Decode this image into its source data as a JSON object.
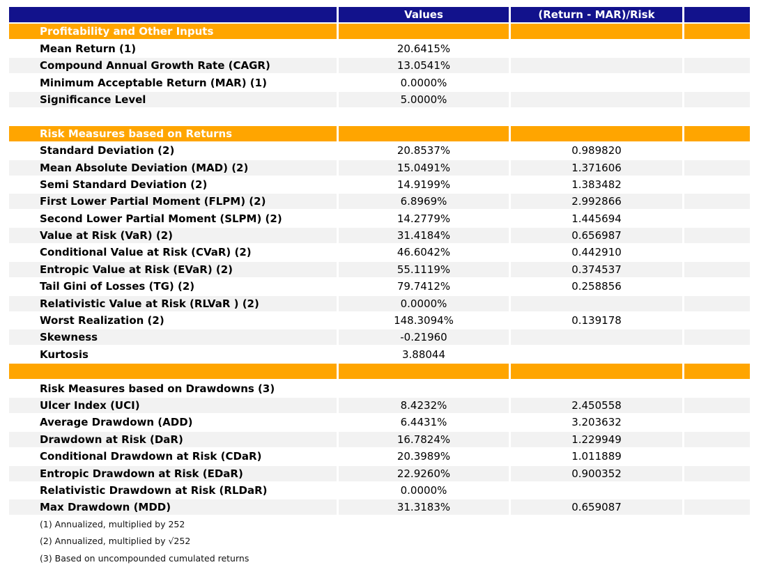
{
  "colors": {
    "header_bg": "#12128C",
    "section_bg": "#FFA500",
    "stripe_bg": "#F2F2F2",
    "text": "#000000"
  },
  "chart_data": {
    "type": "table",
    "title": "",
    "columns": [
      "",
      "Values",
      "(Return - MAR)/Risk",
      ""
    ],
    "rows": [
      {
        "type": "section",
        "label": "Profitability and Other Inputs",
        "value": "",
        "ratio": ""
      },
      {
        "type": "data",
        "shade": false,
        "label": "Mean Return (1)",
        "value": "20.6415%",
        "ratio": ""
      },
      {
        "type": "data",
        "shade": true,
        "label": "Compound Annual Growth Rate (CAGR)",
        "value": "13.0541%",
        "ratio": ""
      },
      {
        "type": "data",
        "shade": false,
        "label": "Minimum Acceptable Return (MAR) (1)",
        "value": "0.0000%",
        "ratio": ""
      },
      {
        "type": "data",
        "shade": true,
        "label": "Significance Level",
        "value": "5.0000%",
        "ratio": ""
      },
      {
        "type": "spacer",
        "label": "",
        "value": "",
        "ratio": ""
      },
      {
        "type": "section",
        "label": "Risk Measures based on Returns",
        "value": "",
        "ratio": ""
      },
      {
        "type": "data",
        "shade": false,
        "label": "Standard Deviation (2)",
        "value": "20.8537%",
        "ratio": "0.989820"
      },
      {
        "type": "data",
        "shade": true,
        "label": "Mean Absolute Deviation (MAD) (2)",
        "value": "15.0491%",
        "ratio": "1.371606"
      },
      {
        "type": "data",
        "shade": false,
        "label": "Semi Standard Deviation (2)",
        "value": "14.9199%",
        "ratio": "1.383482"
      },
      {
        "type": "data",
        "shade": true,
        "label": "First Lower Partial Moment (FLPM) (2)",
        "value": "6.8969%",
        "ratio": "2.992866"
      },
      {
        "type": "data",
        "shade": false,
        "label": "Second Lower Partial Moment (SLPM) (2)",
        "value": "14.2779%",
        "ratio": "1.445694"
      },
      {
        "type": "data",
        "shade": true,
        "label": "Value at Risk (VaR) (2)",
        "value": "31.4184%",
        "ratio": "0.656987"
      },
      {
        "type": "data",
        "shade": false,
        "label": "Conditional Value at Risk (CVaR) (2)",
        "value": "46.6042%",
        "ratio": "0.442910"
      },
      {
        "type": "data",
        "shade": true,
        "label": "Entropic Value at Risk (EVaR) (2)",
        "value": "55.1119%",
        "ratio": "0.374537"
      },
      {
        "type": "data",
        "shade": false,
        "label": "Tail Gini of Losses (TG) (2)",
        "value": "79.7412%",
        "ratio": "0.258856"
      },
      {
        "type": "data",
        "shade": true,
        "label": "Relativistic Value at Risk (RLVaR ) (2)",
        "value": "0.0000%",
        "ratio": ""
      },
      {
        "type": "data",
        "shade": false,
        "label": "Worst Realization (2)",
        "value": "148.3094%",
        "ratio": "0.139178"
      },
      {
        "type": "data",
        "shade": true,
        "label": "Skewness",
        "value": "-0.21960",
        "ratio": ""
      },
      {
        "type": "data",
        "shade": false,
        "label": "Kurtosis",
        "value": "3.88044",
        "ratio": ""
      },
      {
        "type": "section",
        "label": "",
        "value": "",
        "ratio": ""
      },
      {
        "type": "data",
        "shade": false,
        "label": "Risk Measures based on Drawdowns (3)",
        "value": "",
        "ratio": ""
      },
      {
        "type": "data",
        "shade": true,
        "label": "Ulcer Index (UCI)",
        "value": "8.4232%",
        "ratio": "2.450558"
      },
      {
        "type": "data",
        "shade": false,
        "label": "Average Drawdown (ADD)",
        "value": "6.4431%",
        "ratio": "3.203632"
      },
      {
        "type": "data",
        "shade": true,
        "label": "Drawdown at Risk (DaR)",
        "value": "16.7824%",
        "ratio": "1.229949"
      },
      {
        "type": "data",
        "shade": false,
        "label": "Conditional Drawdown at Risk (CDaR)",
        "value": "20.3989%",
        "ratio": "1.011889"
      },
      {
        "type": "data",
        "shade": true,
        "label": "Entropic Drawdown at Risk (EDaR)",
        "value": "22.9260%",
        "ratio": "0.900352"
      },
      {
        "type": "data",
        "shade": false,
        "label": "Relativistic Drawdown at Risk (RLDaR)",
        "value": "0.0000%",
        "ratio": ""
      },
      {
        "type": "data",
        "shade": true,
        "label": "Max Drawdown (MDD)",
        "value": "31.3183%",
        "ratio": "0.659087"
      },
      {
        "type": "footnote",
        "label": "(1) Annualized, multiplied by 252",
        "value": "",
        "ratio": ""
      },
      {
        "type": "footnote",
        "label": "(2) Annualized, multiplied by √252",
        "value": "",
        "ratio": ""
      },
      {
        "type": "footnote",
        "label": "(3) Based on uncompounded cumulated returns",
        "value": "",
        "ratio": ""
      }
    ]
  }
}
